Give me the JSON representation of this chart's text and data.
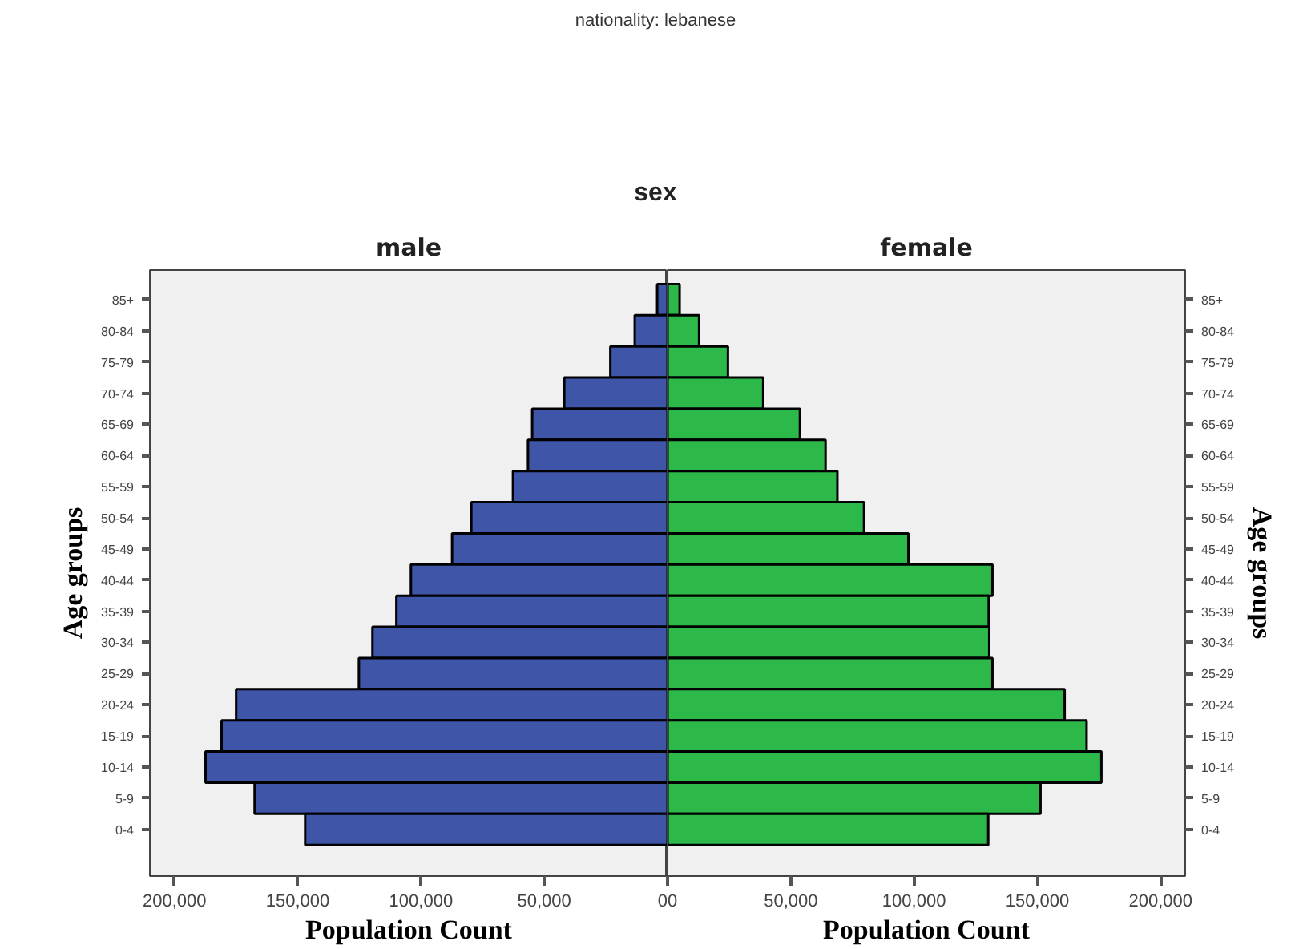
{
  "chart_data": [
    {
      "type": "bar",
      "orientation": "horizontal",
      "title": "male",
      "xlabel": "Population Count",
      "ylabel": "Age groups",
      "annotations": [
        "nationality: lebanese",
        "sex"
      ],
      "categories": [
        "85+",
        "80-84",
        "75-79",
        "70-74",
        "65-69",
        "60-64",
        "55-59",
        "50-54",
        "45-49",
        "40-44",
        "35-39",
        "30-34",
        "25-29",
        "20-24",
        "15-19",
        "10-14",
        "5-9",
        "0-4"
      ],
      "series": [
        {
          "color": "#3f55a8",
          "values": [
            4200,
            13300,
            23200,
            41900,
            54900,
            56600,
            62700,
            79600,
            87400,
            104100,
            110000,
            119700,
            125200,
            175000,
            180900,
            187400,
            167500,
            147000
          ]
        }
      ],
      "xlim": [
        210000,
        0
      ],
      "xticks": [
        {
          "value": 200000,
          "label": "200,000"
        },
        {
          "value": 150000,
          "label": "150,000"
        },
        {
          "value": 100000,
          "label": "100,000"
        },
        {
          "value": 50000,
          "label": "50,000"
        },
        0
      ],
      "grid": false
    },
    {
      "type": "bar",
      "orientation": "horizontal",
      "title": "female",
      "xlabel": "Population Count",
      "ylabel": "Age groups",
      "categories": [
        "85+",
        "80-84",
        "75-79",
        "70-74",
        "65-69",
        "60-64",
        "55-59",
        "50-54",
        "45-49",
        "40-44",
        "35-39",
        "30-34",
        "25-29",
        "20-24",
        "15-19",
        "10-14",
        "5-9",
        "0-4"
      ],
      "series": [
        {
          "color": "#2db84a",
          "values": [
            4900,
            12800,
            24500,
            38800,
            53700,
            64100,
            68900,
            79700,
            97700,
            131800,
            130300,
            130500,
            131800,
            161100,
            170000,
            176000,
            151300,
            130100
          ]
        }
      ],
      "xlim": [
        0,
        210000
      ],
      "xticks": [
        0,
        {
          "value": 50000,
          "label": "50,000"
        },
        {
          "value": 100000,
          "label": "100,000"
        },
        {
          "value": 150000,
          "label": "150,000"
        },
        {
          "value": 200000,
          "label": "200,000"
        }
      ],
      "grid": false
    }
  ]
}
